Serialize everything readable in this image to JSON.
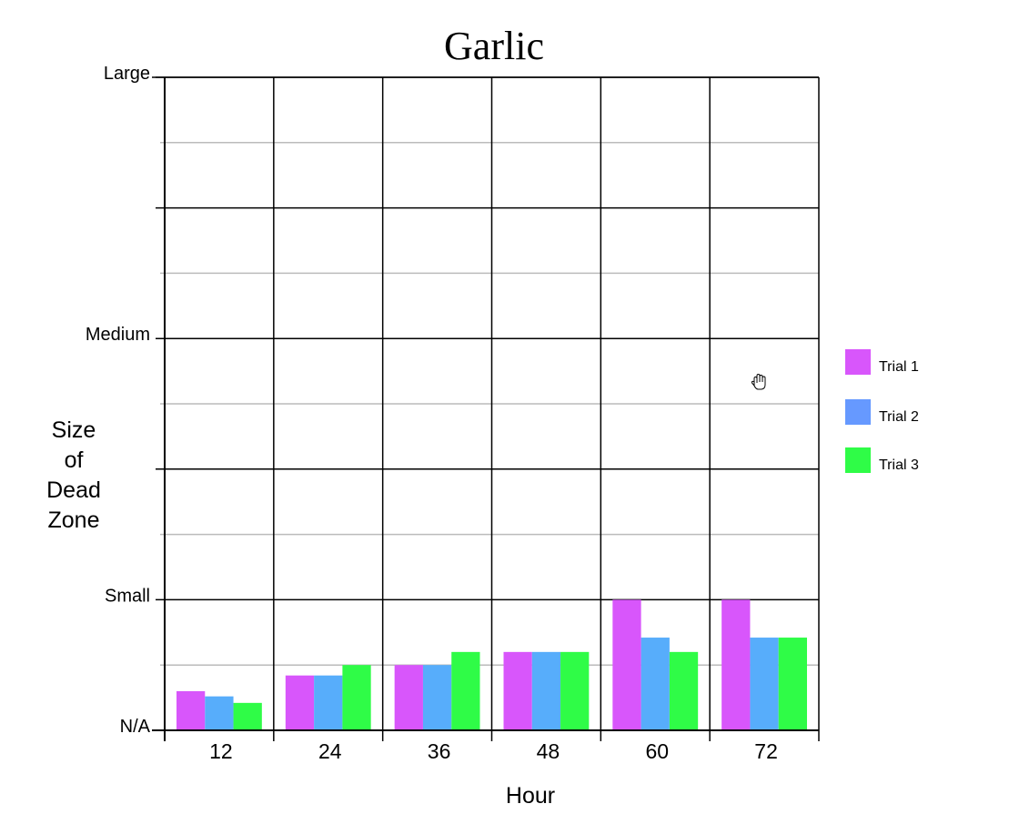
{
  "chart_data": {
    "type": "bar",
    "title": "Garlic",
    "xlabel": "Hour",
    "ylabel_lines": [
      "Size",
      "of",
      "Dead",
      "Zone"
    ],
    "categories": [
      "12",
      "24",
      "36",
      "48",
      "60",
      "72"
    ],
    "ylim": [
      0,
      5
    ],
    "y_tick_labels": [
      {
        "value": 0,
        "label": "N/A"
      },
      {
        "value": 1,
        "label": "Small"
      },
      {
        "value": 3,
        "label": "Medium"
      },
      {
        "value": 5,
        "label": "Large"
      }
    ],
    "series": [
      {
        "name": "Trial 1",
        "color": "#d856fb",
        "values": [
          0.3,
          0.42,
          0.5,
          0.6,
          1.0,
          1.0
        ]
      },
      {
        "name": "Trial 2",
        "color": "#57adfb",
        "values": [
          0.26,
          0.42,
          0.5,
          0.6,
          0.71,
          0.71
        ]
      },
      {
        "name": "Trial 3",
        "color": "#2ffc47",
        "values": [
          0.21,
          0.5,
          0.6,
          0.6,
          0.6,
          0.71
        ]
      }
    ],
    "legend_swatch_colors": [
      "#d856fb",
      "#6699ff",
      "#2ffc47"
    ],
    "legend_position": "right",
    "grid": true,
    "major_grid_color": "#000000",
    "minor_grid_color": "#bbbbbb"
  },
  "cursor_icon": "hand-pointer-icon"
}
